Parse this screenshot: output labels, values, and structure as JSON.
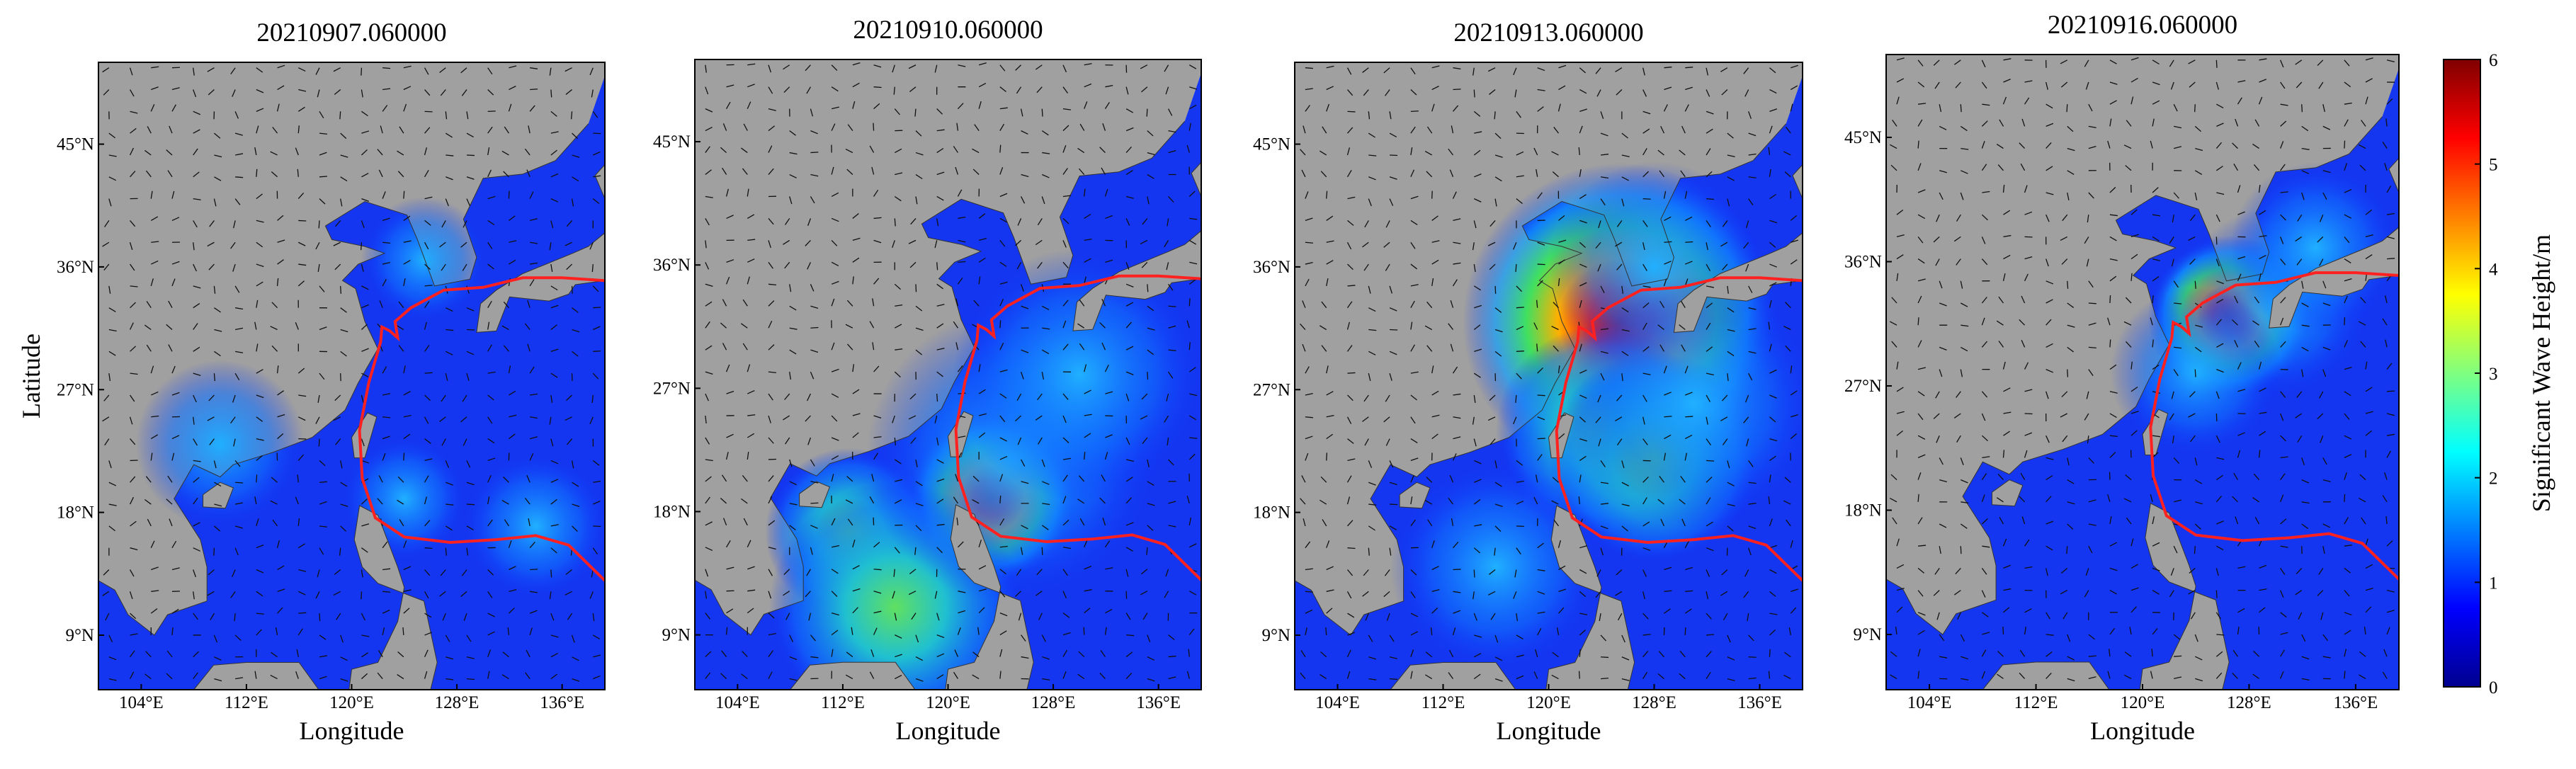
{
  "panels": [
    {
      "title": "20210907.060000"
    },
    {
      "title": "20210910.060000"
    },
    {
      "title": "20210913.060000"
    },
    {
      "title": "20210916.060000"
    }
  ],
  "x_axis": {
    "label": "Longitude",
    "lim": [
      100.75,
      139.25
    ],
    "ticks": [
      {
        "value": 104,
        "label": "104°E"
      },
      {
        "value": 112,
        "label": "112°E"
      },
      {
        "value": 120,
        "label": "120°E"
      },
      {
        "value": 128,
        "label": "128°E"
      },
      {
        "value": 136,
        "label": "136°E"
      }
    ]
  },
  "y_axis": {
    "label": "Latitude",
    "lim": [
      5,
      51
    ],
    "ticks": [
      {
        "value": 45,
        "label": "45°N"
      },
      {
        "value": 36,
        "label": "36°N"
      },
      {
        "value": 27,
        "label": "27°N"
      },
      {
        "value": 18,
        "label": "18°N"
      },
      {
        "value": 9,
        "label": "9°N"
      }
    ]
  },
  "colorbar": {
    "label": "Significant Wave Height/m",
    "lim": [
      0,
      6
    ],
    "ticks": [
      0,
      1,
      2,
      3,
      4,
      5,
      6
    ],
    "colormap": "jet"
  }
}
